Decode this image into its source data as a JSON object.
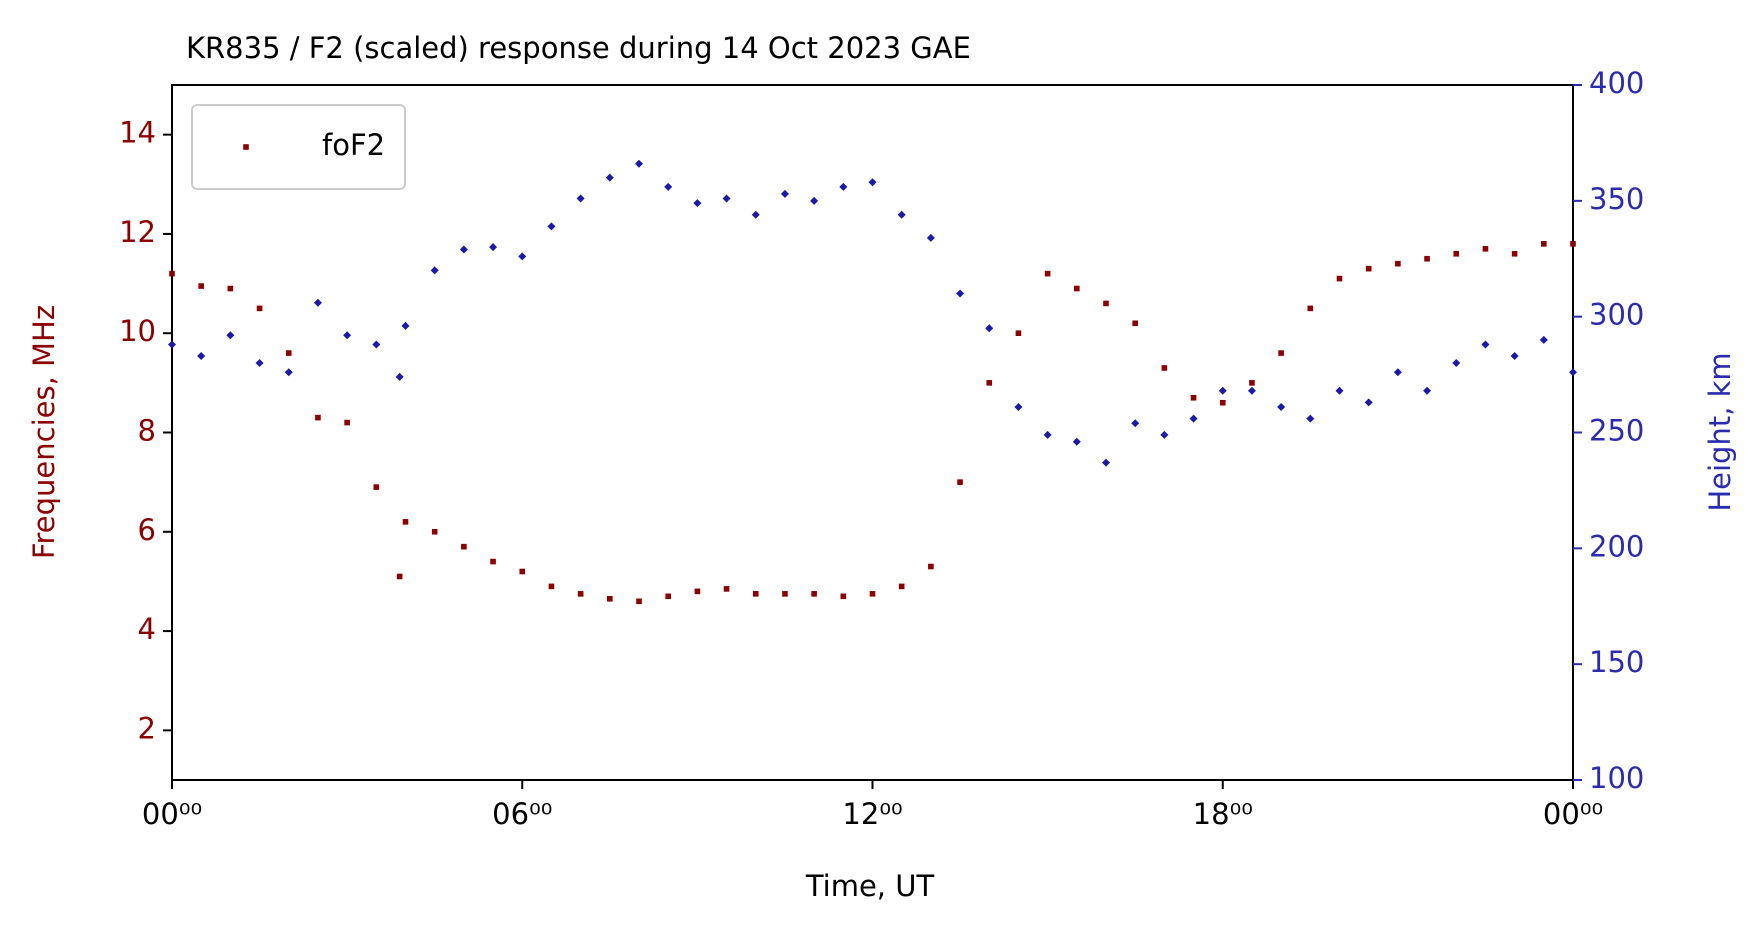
{
  "chart_data": {
    "type": "scatter",
    "title": "KR835 / F2 (scaled) response during 14 Oct 2023 GAE",
    "x_label": "Time, UT",
    "y_label": "Frequencies, MHz",
    "y2_label": "Height, km",
    "x": [
      0,
      0.5,
      1,
      1.5,
      2,
      2.5,
      3,
      3.5,
      3.9,
      4,
      4.5,
      5,
      5.5,
      6,
      6.5,
      7,
      7.5,
      8,
      8.5,
      9,
      9.5,
      10,
      10.5,
      11,
      11.5,
      12,
      12.5,
      13,
      13.5,
      14,
      14.5,
      15,
      15.5,
      16,
      16.5,
      17,
      17.5,
      18,
      18.5,
      19,
      19.5,
      20,
      20.5,
      21,
      21.5,
      22,
      22.5,
      23,
      23.5,
      24
    ],
    "series": [
      {
        "name": "foF2",
        "color": "#8b0000",
        "marker": "square",
        "values": [
          11.2,
          10.95,
          10.9,
          10.5,
          9.6,
          8.3,
          8.2,
          6.9,
          5.1,
          6.2,
          6.0,
          5.7,
          5.4,
          5.2,
          4.9,
          4.75,
          4.65,
          4.6,
          4.7,
          4.8,
          4.85,
          4.75,
          4.75,
          4.75,
          4.7,
          4.75,
          4.9,
          5.3,
          7.0,
          9.0,
          10.0,
          11.2,
          10.9,
          10.6,
          10.2,
          9.3,
          8.7,
          8.6,
          9.0,
          9.6,
          10.5,
          11.1,
          11.3,
          11.4,
          11.5,
          11.6,
          11.7,
          11.6,
          11.8,
          11.8
        ]
      },
      {
        "color": "#1a1aa6",
        "marker": "diamond",
        "axis": "y2",
        "values": [
          288,
          283,
          292,
          280,
          276,
          306,
          292,
          288,
          274,
          296,
          320,
          329,
          330,
          326,
          339,
          351,
          360,
          366,
          356,
          349,
          351,
          344,
          353,
          350,
          356,
          358,
          344,
          334,
          310,
          295,
          261,
          249,
          246,
          237,
          254,
          249,
          256,
          268,
          268,
          261,
          256,
          268,
          263,
          276,
          268,
          280,
          288,
          283,
          290,
          276
        ]
      }
    ],
    "xlim": [
      0,
      24
    ],
    "xticks": [
      {
        "value": 0,
        "label": "00⁰⁰"
      },
      {
        "value": 6,
        "label": "06⁰⁰"
      },
      {
        "value": 12,
        "label": "12⁰⁰"
      },
      {
        "value": 18,
        "label": "18⁰⁰"
      },
      {
        "value": 24,
        "label": "00⁰⁰"
      }
    ],
    "ylim": [
      1,
      15
    ],
    "yticks": [
      2,
      4,
      6,
      8,
      10,
      12,
      14
    ],
    "y_color": "#8b0000",
    "y2lim": [
      100,
      400
    ],
    "y2ticks": [
      100,
      150,
      200,
      250,
      300,
      350,
      400
    ],
    "y2_color": "#2b2bb0",
    "legend": "upper left",
    "grid": false
  }
}
